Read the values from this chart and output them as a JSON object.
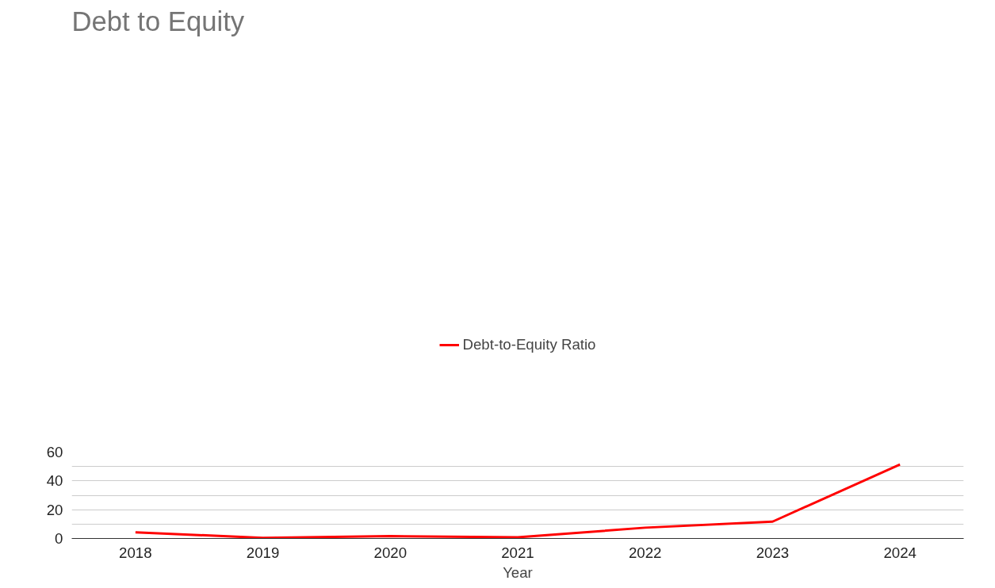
{
  "chart_data": {
    "type": "line",
    "title": "Debt to Equity",
    "xlabel": "Year",
    "categories": [
      "2018",
      "2019",
      "2020",
      "2021",
      "2022",
      "2023",
      "2024"
    ],
    "series": [
      {
        "name": "Debt-to-Equity Ratio",
        "color": "#ff0000",
        "values": [
          4.3,
          0.4,
          1.6,
          0.8,
          7.5,
          11.7,
          51.4
        ]
      }
    ],
    "ylim": [
      0,
      60
    ],
    "yticks": [
      0,
      {
        "value": 10,
        "label": null
      },
      20,
      {
        "value": 30,
        "label": null
      },
      40,
      {
        "value": 50,
        "label": null
      },
      60
    ],
    "grid": "y",
    "legend": "top",
    "marker": "none",
    "line_style": "solid"
  }
}
